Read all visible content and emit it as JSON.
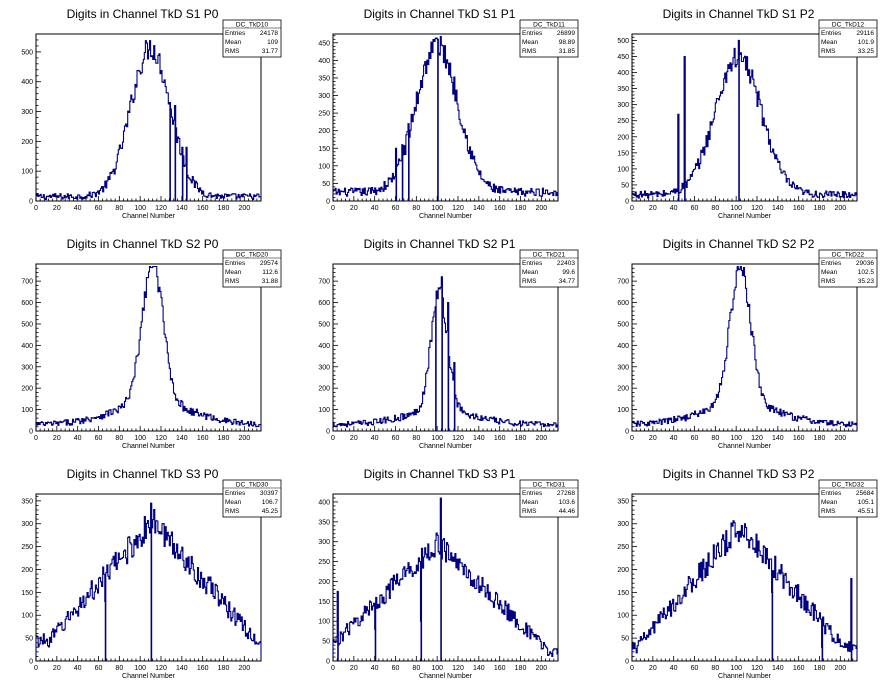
{
  "colors": {
    "line": "#000080",
    "frame": "#000000",
    "background": "#ffffff"
  },
  "chart_data": [
    {
      "type": "histogram",
      "title": "Digits in Channel TkD S1 P0",
      "xlabel": "Channel Number",
      "ylabel": "",
      "xlim": [
        0,
        216
      ],
      "ylim": [
        0,
        560
      ],
      "xticks": [
        0,
        20,
        40,
        60,
        80,
        100,
        120,
        140,
        160,
        180,
        200
      ],
      "yticks": [
        0,
        100,
        200,
        300,
        400,
        500
      ],
      "stats": {
        "name": "DC_TkD10",
        "entries": "24178",
        "mean": "109",
        "rms": "31.77"
      },
      "profile": {
        "type": "gauss",
        "peak": 110,
        "width": 19,
        "amp": 500,
        "base": 15
      },
      "spikes": [
        [
          128,
          330
        ],
        [
          133,
          320
        ],
        [
          140,
          180
        ],
        [
          144,
          180
        ]
      ]
    },
    {
      "type": "histogram",
      "title": "Digits in Channel TkD S1 P1",
      "xlabel": "Channel Number",
      "ylabel": "",
      "xlim": [
        0,
        216
      ],
      "ylim": [
        0,
        475
      ],
      "xticks": [
        0,
        20,
        40,
        60,
        80,
        100,
        120,
        140,
        160,
        180,
        200
      ],
      "yticks": [
        0,
        50,
        100,
        150,
        200,
        250,
        300,
        350,
        400,
        450
      ],
      "stats": {
        "name": "DC_TkD11",
        "entries": "26899",
        "mean": "98.89",
        "rms": "31.85"
      },
      "profile": {
        "type": "gauss",
        "peak": 100,
        "width": 20,
        "amp": 420,
        "base": 25
      },
      "spikes": [
        [
          60,
          150
        ],
        [
          66,
          160
        ],
        [
          72,
          220
        ],
        [
          100,
          460
        ]
      ]
    },
    {
      "type": "histogram",
      "title": "Digits in Channel TkD S1 P2",
      "xlabel": "Channel Number",
      "ylabel": "",
      "xlim": [
        0,
        216
      ],
      "ylim": [
        0,
        520
      ],
      "xticks": [
        0,
        20,
        40,
        60,
        80,
        100,
        120,
        140,
        160,
        180,
        200
      ],
      "yticks": [
        0,
        50,
        100,
        150,
        200,
        250,
        300,
        350,
        400,
        450,
        500
      ],
      "stats": {
        "name": "DC_TkD12",
        "entries": "29116",
        "mean": "101.9",
        "rms": "33.25"
      },
      "profile": {
        "type": "gauss",
        "peak": 102,
        "width": 22,
        "amp": 430,
        "base": 20
      },
      "spikes": [
        [
          44,
          270
        ],
        [
          50,
          450
        ],
        [
          102,
          500
        ]
      ]
    },
    {
      "type": "histogram",
      "title": "Digits in Channel TkD S2 P0",
      "xlabel": "Channel Number",
      "ylabel": "",
      "xlim": [
        0,
        216
      ],
      "ylim": [
        0,
        780
      ],
      "xticks": [
        0,
        20,
        40,
        60,
        80,
        100,
        120,
        140,
        160,
        180,
        200
      ],
      "yticks": [
        0,
        100,
        200,
        300,
        400,
        500,
        600,
        700
      ],
      "stats": {
        "name": "DC_TkD20",
        "entries": "29574",
        "mean": "112.6",
        "rms": "31.88"
      },
      "profile": {
        "type": "gauss",
        "peak": 112,
        "width": 10,
        "amp": 660,
        "base": 30,
        "tail": 100,
        "tailWidth": 38
      },
      "spikes": []
    },
    {
      "type": "histogram",
      "title": "Digits in Channel TkD S2 P1",
      "xlabel": "Channel Number",
      "ylabel": "",
      "xlim": [
        0,
        216
      ],
      "ylim": [
        0,
        780
      ],
      "xticks": [
        0,
        20,
        40,
        60,
        80,
        100,
        120,
        140,
        160,
        180,
        200
      ],
      "yticks": [
        0,
        100,
        200,
        300,
        400,
        500,
        600,
        700
      ],
      "stats": {
        "name": "DC_TkD21",
        "entries": "22403",
        "mean": "99.6",
        "rms": "34.77"
      },
      "profile": {
        "type": "gauss",
        "peak": 102,
        "width": 8,
        "amp": 560,
        "base": 30,
        "tail": 60,
        "tailWidth": 35
      },
      "spikes": [
        [
          98,
          580
        ],
        [
          104,
          720
        ],
        [
          110,
          600
        ],
        [
          116,
          320
        ]
      ]
    },
    {
      "type": "histogram",
      "title": "Digits in Channel TkD S2 P2",
      "xlabel": "Channel Number",
      "ylabel": "",
      "xlim": [
        0,
        216
      ],
      "ylim": [
        0,
        780
      ],
      "xticks": [
        0,
        20,
        40,
        60,
        80,
        100,
        120,
        140,
        160,
        180,
        200
      ],
      "yticks": [
        0,
        100,
        200,
        300,
        400,
        500,
        600,
        700
      ],
      "stats": {
        "name": "DC_TkD22",
        "entries": "29036",
        "mean": "102.5",
        "rms": "35.23"
      },
      "profile": {
        "type": "gauss",
        "peak": 104,
        "width": 10,
        "amp": 640,
        "base": 30,
        "tail": 90,
        "tailWidth": 38
      },
      "spikes": []
    },
    {
      "type": "histogram",
      "title": "Digits in Channel TkD S3 P0",
      "xlabel": "Channel Number",
      "ylabel": "",
      "xlim": [
        0,
        216
      ],
      "ylim": [
        0,
        365
      ],
      "xticks": [
        0,
        20,
        40,
        60,
        80,
        100,
        120,
        140,
        160,
        180,
        200
      ],
      "yticks": [
        0,
        50,
        100,
        150,
        200,
        250,
        300,
        350
      ],
      "stats": {
        "name": "DC_TkD30",
        "entries": "30397",
        "mean": "106.7",
        "rms": "45.25"
      },
      "profile": {
        "type": "tri",
        "peak": 112,
        "width": 62,
        "amp": 260,
        "base": 45
      },
      "spikes": [
        [
          66,
          130
        ],
        [
          110,
          345
        ]
      ]
    },
    {
      "type": "histogram",
      "title": "Digits in Channel TkD S3 P1",
      "xlabel": "Channel Number",
      "ylabel": "",
      "xlim": [
        0,
        216
      ],
      "ylim": [
        0,
        420
      ],
      "xticks": [
        0,
        20,
        40,
        60,
        80,
        100,
        120,
        140,
        160,
        180,
        200
      ],
      "yticks": [
        0,
        50,
        100,
        150,
        200,
        250,
        300,
        350,
        400
      ],
      "stats": {
        "name": "DC_TkD31",
        "entries": "27268",
        "mean": "103.6",
        "rms": "44.46"
      },
      "profile": {
        "type": "tri",
        "peak": 100,
        "width": 68,
        "amp": 275,
        "base": 20
      },
      "spikes": [
        [
          4,
          175
        ],
        [
          40,
          80
        ],
        [
          84,
          100
        ],
        [
          103,
          410
        ]
      ]
    },
    {
      "type": "histogram",
      "title": "Digits in Channel TkD S3 P2",
      "xlabel": "Channel Number",
      "ylabel": "",
      "xlim": [
        0,
        216
      ],
      "ylim": [
        0,
        365
      ],
      "xticks": [
        0,
        20,
        40,
        60,
        80,
        100,
        120,
        140,
        160,
        180,
        200
      ],
      "yticks": [
        0,
        50,
        100,
        150,
        200,
        250,
        300,
        350
      ],
      "stats": {
        "name": "DC_TkD32",
        "entries": "25684",
        "mean": "105.1",
        "rms": "45.51"
      },
      "profile": {
        "type": "tri",
        "peak": 104,
        "width": 62,
        "amp": 265,
        "base": 30
      },
      "spikes": [
        [
          134,
          150
        ],
        [
          182,
          30
        ],
        [
          210,
          180
        ]
      ]
    }
  ]
}
